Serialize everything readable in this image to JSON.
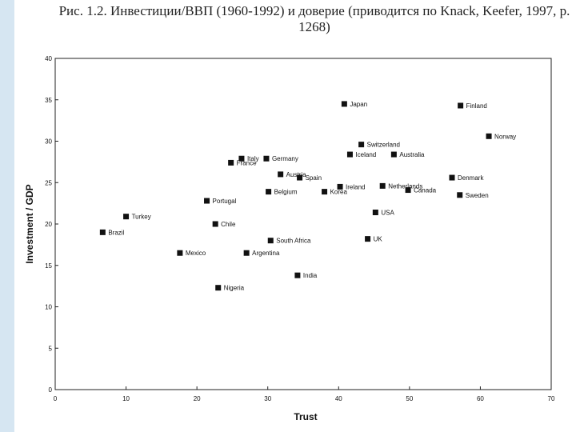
{
  "caption": {
    "line1": "Рис. 1.2.  Инвестиции/ВВП (1960-1992) и доверие (приводится по Knack, Keefer, 1997, р.",
    "line2": "1268)"
  },
  "chart_data": {
    "type": "scatter",
    "title": "",
    "xlabel": "Trust",
    "ylabel": "Investment / GDP",
    "xlim": [
      0,
      70
    ],
    "ylim": [
      0,
      40
    ],
    "xticks": [
      0,
      10,
      20,
      30,
      40,
      50,
      60,
      70
    ],
    "yticks": [
      0,
      5,
      10,
      15,
      20,
      25,
      30,
      35,
      40
    ],
    "grid": false,
    "legend": "none",
    "marker": "square",
    "marker_color": "#111111",
    "points": [
      {
        "label": "Japan",
        "x": 40.8,
        "y": 34.5
      },
      {
        "label": "Finland",
        "x": 57.2,
        "y": 34.3
      },
      {
        "label": "Norway",
        "x": 61.2,
        "y": 30.6
      },
      {
        "label": "Switzerland",
        "x": 43.2,
        "y": 29.6
      },
      {
        "label": "Iceland",
        "x": 41.6,
        "y": 28.4
      },
      {
        "label": "Australia",
        "x": 47.8,
        "y": 28.4
      },
      {
        "label": "Italy",
        "x": 26.3,
        "y": 27.9
      },
      {
        "label": "France",
        "x": 24.8,
        "y": 27.4
      },
      {
        "label": "Germany",
        "x": 29.8,
        "y": 27.9
      },
      {
        "label": "Austria",
        "x": 31.8,
        "y": 26.0
      },
      {
        "label": "Spain",
        "x": 34.5,
        "y": 25.6
      },
      {
        "label": "Denmark",
        "x": 56.0,
        "y": 25.6
      },
      {
        "label": "Netherlands",
        "x": 46.2,
        "y": 24.6
      },
      {
        "label": "Ireland",
        "x": 40.2,
        "y": 24.5
      },
      {
        "label": "Canada",
        "x": 49.8,
        "y": 24.1
      },
      {
        "label": "Belgium",
        "x": 30.1,
        "y": 23.9
      },
      {
        "label": "Korea",
        "x": 38.0,
        "y": 23.9
      },
      {
        "label": "Sweden",
        "x": 57.1,
        "y": 23.5
      },
      {
        "label": "Portugal",
        "x": 21.4,
        "y": 22.8
      },
      {
        "label": "USA",
        "x": 45.2,
        "y": 21.4
      },
      {
        "label": "Turkey",
        "x": 10.0,
        "y": 20.9
      },
      {
        "label": "Chile",
        "x": 22.6,
        "y": 20.0
      },
      {
        "label": "Brazil",
        "x": 6.7,
        "y": 19.0
      },
      {
        "label": "UK",
        "x": 44.1,
        "y": 18.2
      },
      {
        "label": "South Africa",
        "x": 30.4,
        "y": 18.0
      },
      {
        "label": "Mexico",
        "x": 17.6,
        "y": 16.5
      },
      {
        "label": "Argentina",
        "x": 27.0,
        "y": 16.5
      },
      {
        "label": "India",
        "x": 34.2,
        "y": 13.8
      },
      {
        "label": "Nigeria",
        "x": 23.0,
        "y": 12.3
      }
    ]
  }
}
